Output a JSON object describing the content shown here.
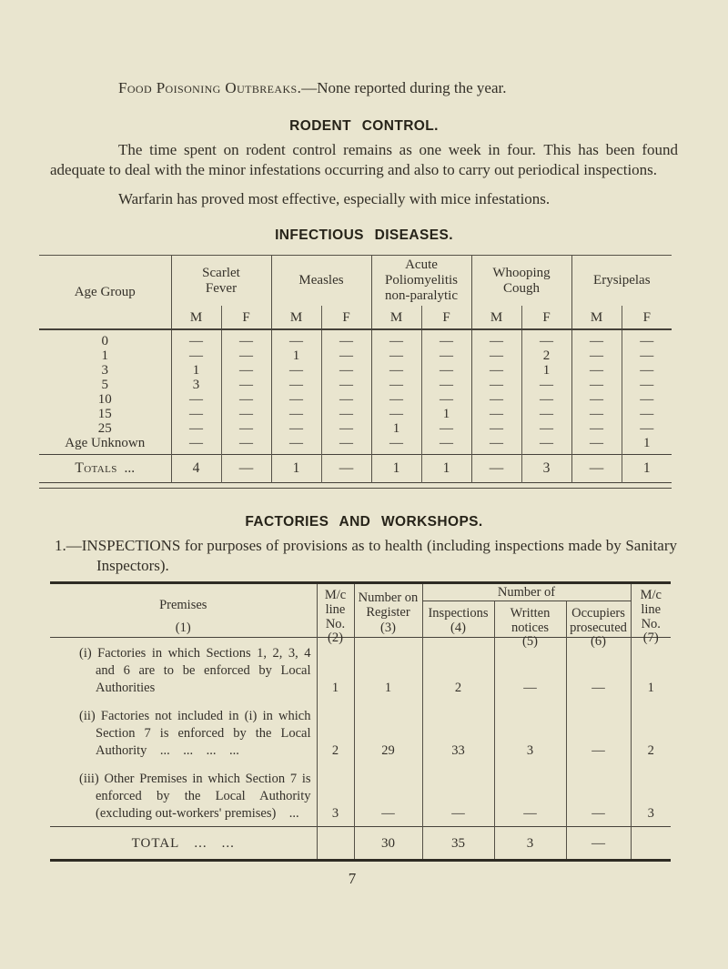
{
  "doc": {
    "food_poisoning_lead": "Food Poisoning Outbreaks.",
    "food_poisoning_rest": "—None reported during the year.",
    "rodent_heading": "RODENT CONTROL.",
    "rodent_para": "The time spent on rodent control remains as one week in four. This has been found adequate to deal with the minor infestations occurring and also to carry out periodical inspections.",
    "warfarin_para": "Warfarin has proved most effective, especially with mice infestations.",
    "infectious_heading": "INFECTIOUS DISEASES.",
    "factories_heading": "FACTORIES AND WORKSHOPS.",
    "factories_note": "1.—INSPECTIONS for purposes of provisions as to health (including inspections made by Sanitary Inspectors).",
    "page_number": "7"
  },
  "infectious_table": {
    "age_header": "Age Group",
    "sub_headers": [
      "M",
      "F"
    ],
    "diseases": [
      {
        "name": "Scarlet Fever",
        "lines": [
          "Scarlet",
          "Fever"
        ]
      },
      {
        "name": "Measles",
        "lines": [
          "Measles"
        ]
      },
      {
        "name": "Acute Poliomyelitis non-paralytic",
        "lines": [
          "Acute",
          "Poliomyelitis",
          "non-paralytic"
        ]
      },
      {
        "name": "Whooping Cough",
        "lines": [
          "Whooping",
          "Cough"
        ]
      },
      {
        "name": "Erysipelas",
        "lines": [
          "Erysipelas"
        ]
      }
    ],
    "rows": [
      {
        "age": "0",
        "values": [
          "—",
          "—",
          "—",
          "—",
          "—",
          "—",
          "—",
          "—",
          "—",
          "—"
        ]
      },
      {
        "age": "1",
        "values": [
          "—",
          "—",
          "1",
          "—",
          "—",
          "—",
          "—",
          "2",
          "—",
          "—"
        ]
      },
      {
        "age": "3",
        "values": [
          "1",
          "—",
          "—",
          "—",
          "—",
          "—",
          "—",
          "1",
          "—",
          "—"
        ]
      },
      {
        "age": "5",
        "values": [
          "3",
          "—",
          "—",
          "—",
          "—",
          "—",
          "—",
          "—",
          "—",
          "—"
        ]
      },
      {
        "age": "10",
        "values": [
          "—",
          "—",
          "—",
          "—",
          "—",
          "—",
          "—",
          "—",
          "—",
          "—"
        ]
      },
      {
        "age": "15",
        "values": [
          "—",
          "—",
          "—",
          "—",
          "—",
          "1",
          "—",
          "—",
          "—",
          "—"
        ]
      },
      {
        "age": "25",
        "values": [
          "—",
          "—",
          "—",
          "—",
          "1",
          "—",
          "—",
          "—",
          "—",
          "—"
        ]
      },
      {
        "age": "Age Unknown",
        "values": [
          "—",
          "—",
          "—",
          "—",
          "—",
          "—",
          "—",
          "—",
          "—",
          "1"
        ]
      }
    ],
    "totals_label": "Totals",
    "totals_dots": "...",
    "totals": [
      "4",
      "—",
      "1",
      "—",
      "1",
      "1",
      "—",
      "3",
      "—",
      "1"
    ]
  },
  "factories_table": {
    "headers": {
      "premises": "Premises",
      "premises_num": "(1)",
      "mc_line": "M/c line No.",
      "mc_line_num": "(2)",
      "register": "Number on Register",
      "register_num": "(3)",
      "number_of": "Number of",
      "inspections": "Inspections",
      "inspections_num": "(4)",
      "written_notices": "Written notices",
      "written_notices_num": "(5)",
      "occupiers": "Occupiers prosecuted",
      "occupiers_num": "(6)",
      "mc_line2": "M/c line No.",
      "mc_line2_num": "(7)"
    },
    "rows": [
      {
        "prefix": "(i)",
        "text": "Factories in which Sections 1, 2, 3, 4 and 6 are to be enforced by Local Authorities",
        "values": [
          "1",
          "1",
          "2",
          "—",
          "—",
          "1"
        ]
      },
      {
        "prefix": "(ii)",
        "text": "Factories not included in (i) in which Section 7 is enforced by the Local Authority ... ... ... ...",
        "values": [
          "2",
          "29",
          "33",
          "3",
          "—",
          "2"
        ]
      },
      {
        "prefix": "(iii)",
        "text": "Other Premises in which Section 7 is enforced by the Local Authority (excluding out-workers' premises) ...",
        "values": [
          "3",
          "—",
          "—",
          "—",
          "—",
          "3"
        ]
      }
    ],
    "total_label": "TOTAL",
    "total_dots": "... ...",
    "total_values": [
      "",
      "30",
      "35",
      "3",
      "—",
      ""
    ]
  }
}
